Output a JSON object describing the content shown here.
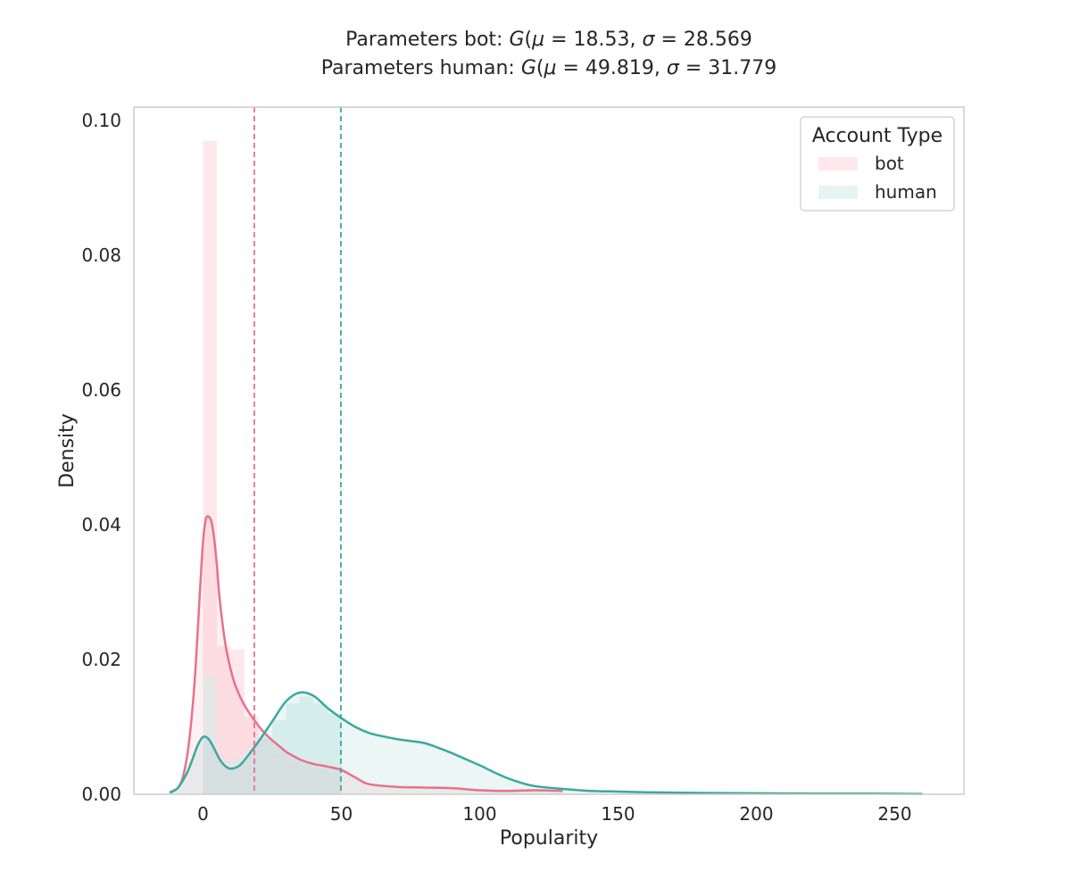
{
  "chart_data": {
    "type": "area",
    "title_lines": [
      "Parameters bot: $G(\\mu=$ 18.53, $\\sigma=$ 28.569",
      "Parameters human: $G(\\mu=$ 49.819, $\\sigma=$ 31.779"
    ],
    "title_parts": [
      {
        "lead": "Parameters bot: ",
        "mu": "18.53",
        "sigma": "28.569"
      },
      {
        "lead": "Parameters human: ",
        "mu": "49.819",
        "sigma": "31.779"
      }
    ],
    "title_symbols": {
      "g": "G",
      "mu": "μ",
      "sigma": "σ",
      "open": "(",
      "eq": "=",
      "comma": ","
    },
    "xlabel": "Popularity",
    "ylabel": "Density",
    "xlim": [
      -25,
      275
    ],
    "ylim": [
      0,
      0.102
    ],
    "xticks": [
      0,
      50,
      100,
      150,
      200,
      250
    ],
    "xtick_labels": [
      "0",
      "50",
      "100",
      "150",
      "200",
      "250"
    ],
    "yticks": [
      0,
      0.02,
      0.04,
      0.06,
      0.08,
      0.1
    ],
    "ytick_labels": [
      "0.00",
      "0.02",
      "0.04",
      "0.06",
      "0.08",
      "0.10"
    ],
    "grid": false,
    "legend": {
      "title": "Account Type",
      "placement": "top-right",
      "entries": [
        "bot",
        "human"
      ]
    },
    "series": [
      {
        "name": "bot",
        "color": "#e8718a",
        "hist_fill": "#ffe4ea",
        "mean": 18.53,
        "histogram": {
          "bins": [
            [
              0,
              5,
              0.097
            ],
            [
              5,
              10,
              0.022
            ],
            [
              10,
              15,
              0.0215
            ],
            [
              15,
              20,
              0.0115
            ],
            [
              20,
              25,
              0.008
            ],
            [
              25,
              30,
              0.006
            ],
            [
              30,
              35,
              0.0045
            ],
            [
              35,
              40,
              0.004
            ],
            [
              40,
              45,
              0.0035
            ],
            [
              45,
              50,
              0.0032
            ]
          ]
        },
        "kde": {
          "x": [
            -12,
            -9,
            -7,
            -5,
            -3,
            -1,
            0,
            1,
            2,
            3,
            4,
            5,
            6,
            8,
            10,
            12,
            15,
            18,
            20,
            22,
            25,
            28,
            30,
            33,
            36,
            40,
            45,
            50,
            55,
            60,
            70,
            80,
            90,
            100,
            110,
            120,
            130
          ],
          "y": [
            0.0003,
            0.001,
            0.003,
            0.008,
            0.017,
            0.031,
            0.0375,
            0.0408,
            0.0412,
            0.0405,
            0.038,
            0.034,
            0.029,
            0.0225,
            0.0185,
            0.0158,
            0.0132,
            0.0113,
            0.0102,
            0.0092,
            0.008,
            0.007,
            0.0063,
            0.0056,
            0.005,
            0.0045,
            0.0041,
            0.0036,
            0.0025,
            0.0015,
            0.0011,
            0.001,
            0.0009,
            0.0006,
            0.0005,
            0.0006,
            0.0005
          ]
        }
      },
      {
        "name": "human",
        "color": "#3aa9a0",
        "hist_fill": "#e3f4f2",
        "mean": 49.819,
        "histogram": {
          "bins": [
            [
              0,
              5,
              0.0176
            ],
            [
              5,
              10,
              0.005
            ],
            [
              10,
              15,
              0.0055
            ],
            [
              15,
              20,
              0.0065
            ],
            [
              20,
              25,
              0.0085
            ],
            [
              25,
              30,
              0.011
            ],
            [
              30,
              35,
              0.0135
            ],
            [
              35,
              40,
              0.0145
            ],
            [
              40,
              45,
              0.0135
            ],
            [
              45,
              50,
              0.012
            ]
          ]
        },
        "kde": {
          "x": [
            -12,
            -9,
            -6,
            -4,
            -2,
            0,
            2,
            4,
            6,
            8,
            10,
            13,
            16,
            20,
            25,
            30,
            35,
            40,
            45,
            50,
            55,
            60,
            65,
            70,
            75,
            80,
            85,
            90,
            95,
            100,
            105,
            110,
            115,
            120,
            130,
            140,
            150,
            160,
            180,
            200,
            220,
            240,
            260
          ],
          "y": [
            0.0002,
            0.001,
            0.003,
            0.005,
            0.0072,
            0.0085,
            0.0082,
            0.0068,
            0.0052,
            0.0042,
            0.0038,
            0.0042,
            0.0056,
            0.0078,
            0.0108,
            0.0138,
            0.0151,
            0.0146,
            0.0128,
            0.0113,
            0.01,
            0.0091,
            0.0086,
            0.0082,
            0.0079,
            0.0076,
            0.0069,
            0.0061,
            0.0052,
            0.0043,
            0.0033,
            0.0024,
            0.0017,
            0.0012,
            0.0008,
            0.0005,
            0.0004,
            0.0003,
            0.0002,
            0.00015,
            0.0001,
            0.0001,
            5e-05
          ]
        }
      }
    ]
  }
}
